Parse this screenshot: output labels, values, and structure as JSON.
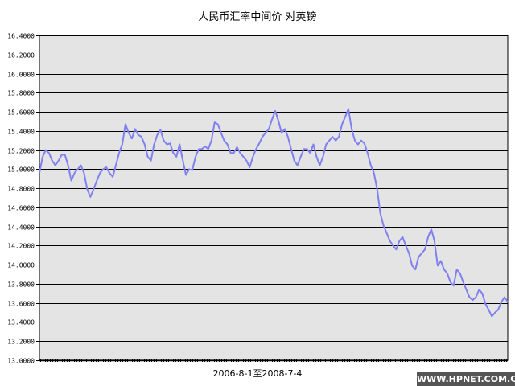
{
  "chart_data": {
    "type": "line",
    "title": "人民币汇率中间价 对英镑",
    "xlabel": "2006-8-1至2008-7-4",
    "ylabel": "",
    "x_range": [
      "2006-8-1",
      "2008-7-4"
    ],
    "ylim": [
      13.0,
      16.4
    ],
    "yticks": [
      "13.0000",
      "13.2000",
      "13.4000",
      "13.6000",
      "13.8000",
      "14.0000",
      "14.2000",
      "14.4000",
      "14.6000",
      "14.8000",
      "15.0000",
      "15.2000",
      "15.4000",
      "15.6000",
      "15.8000",
      "16.0000",
      "16.2000",
      "16.4000"
    ],
    "grid": true,
    "legend": "none",
    "colors": {
      "line": "#8080f0",
      "plot_bg": "#e4e4e4",
      "grid": "#000000"
    },
    "values": [
      14.96,
      15.13,
      15.2,
      15.17,
      15.09,
      15.04,
      15.09,
      15.15,
      15.15,
      15.04,
      14.88,
      14.96,
      15.0,
      15.04,
      14.96,
      14.79,
      14.71,
      14.79,
      14.88,
      14.96,
      15.0,
      15.02,
      14.96,
      14.92,
      15.04,
      15.17,
      15.26,
      15.47,
      15.38,
      15.32,
      15.42,
      15.36,
      15.34,
      15.26,
      15.13,
      15.09,
      15.26,
      15.36,
      15.41,
      15.3,
      15.26,
      15.27,
      15.17,
      15.13,
      15.26,
      15.09,
      14.94,
      15.0,
      14.99,
      15.13,
      15.21,
      15.21,
      15.24,
      15.21,
      15.3,
      15.49,
      15.47,
      15.38,
      15.3,
      15.26,
      15.17,
      15.17,
      15.23,
      15.17,
      15.13,
      15.09,
      15.02,
      15.13,
      15.21,
      15.27,
      15.34,
      15.38,
      15.42,
      15.52,
      15.61,
      15.51,
      15.38,
      15.42,
      15.34,
      15.21,
      15.09,
      15.04,
      15.13,
      15.21,
      15.21,
      15.17,
      15.26,
      15.13,
      15.04,
      15.13,
      15.26,
      15.3,
      15.34,
      15.3,
      15.34,
      15.47,
      15.55,
      15.63,
      15.42,
      15.3,
      15.26,
      15.3,
      15.27,
      15.17,
      15.04,
      14.96,
      14.79,
      14.54,
      14.41,
      14.33,
      14.25,
      14.2,
      14.16,
      14.25,
      14.29,
      14.2,
      14.12,
      13.99,
      13.95,
      14.08,
      14.12,
      14.16,
      14.29,
      14.37,
      14.25,
      13.99,
      14.04,
      13.95,
      13.91,
      13.82,
      13.78,
      13.95,
      13.91,
      13.82,
      13.74,
      13.66,
      13.63,
      13.66,
      13.74,
      13.7,
      13.59,
      13.53,
      13.46,
      13.5,
      13.53,
      13.61,
      13.66,
      13.61
    ]
  },
  "watermark": "WWW.HPNET.COM.CN"
}
